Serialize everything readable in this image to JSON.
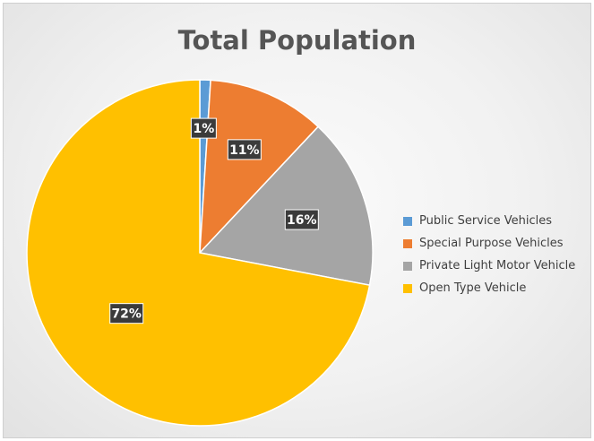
{
  "chart_data": {
    "type": "pie",
    "title": "Total Population",
    "categories": [
      "Public Service Vehicles",
      "Special Purpose Vehicles",
      "Private Light Motor Vehicle",
      "Open Type Vehicle"
    ],
    "values": [
      1,
      11,
      16,
      72
    ],
    "data_labels": [
      "1%",
      "11%",
      "16%",
      "72%"
    ],
    "colors": [
      "#5b9bd5",
      "#ed7d31",
      "#a5a5a5",
      "#ffc000"
    ],
    "start_angle_deg": 0,
    "direction": "clockwise",
    "legend_position": "right"
  }
}
